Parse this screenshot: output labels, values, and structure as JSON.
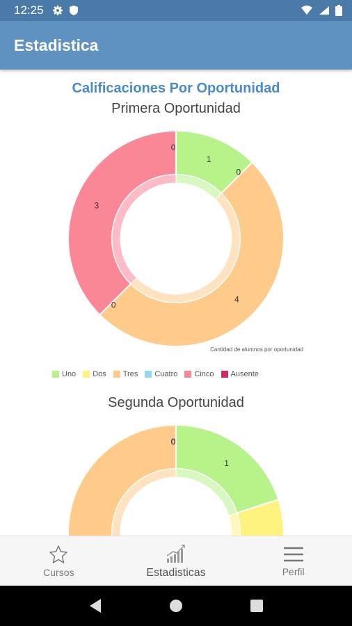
{
  "status_bar": {
    "time": "12:25"
  },
  "app_bar": {
    "title": "Estadistica"
  },
  "main_title": "Calificaciones Por Oportunidad",
  "charts": [
    {
      "title": "Primera Oportunidad",
      "description": "Cantidad de alumnos por oportunidad"
    },
    {
      "title": "Segunda Oportunidad"
    }
  ],
  "legend": [
    {
      "label": "Uno",
      "color": "#b7f28a"
    },
    {
      "label": "Dos",
      "color": "#fff380"
    },
    {
      "label": "Tres",
      "color": "#ffcb8a"
    },
    {
      "label": "Cuatro",
      "color": "#8fd8f6"
    },
    {
      "label": "Cinco",
      "color": "#fb8696"
    },
    {
      "label": "Ausente",
      "color": "#d4286a"
    }
  ],
  "chart_data": [
    {
      "type": "pie",
      "title": "Primera Oportunidad",
      "categories": [
        "Uno",
        "Dos",
        "Tres",
        "Cuatro",
        "Cinco",
        "Ausente"
      ],
      "values": [
        1,
        0,
        4,
        0,
        3,
        0
      ]
    },
    {
      "type": "pie",
      "title": "Segunda Oportunidad",
      "categories": [
        "Uno",
        "Dos",
        "Tres",
        "Cuatro",
        "Cinco",
        "Ausente"
      ],
      "values": [
        1,
        1,
        3,
        0,
        0,
        0
      ]
    }
  ],
  "bottom_nav": [
    {
      "label": "Cursos",
      "icon": "star-icon"
    },
    {
      "label": "Estadisticas",
      "icon": "chart-icon"
    },
    {
      "label": "Perfil",
      "icon": "menu-icon"
    }
  ]
}
